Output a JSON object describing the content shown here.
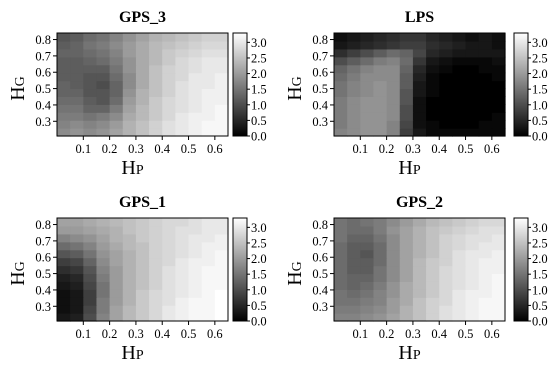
{
  "chart_data": [
    {
      "type": "heatmap",
      "title": "GPS_3",
      "xlabel": "H",
      "xlabel_sub": "P",
      "ylabel": "H",
      "ylabel_sub": "G",
      "xlim": [
        0.0,
        0.65
      ],
      "ylim": [
        0.21,
        0.84
      ],
      "x_ticks": [
        "0.1",
        "0.2",
        "0.3",
        "0.4",
        "0.5",
        "0.6"
      ],
      "y_ticks": [
        "0.3",
        "0.4",
        "0.5",
        "0.6",
        "0.7",
        "0.8"
      ],
      "color_range": [
        0.0,
        3.3
      ],
      "colorbar_ticks": [
        "0.0",
        "0.5",
        "1.0",
        "1.5",
        "2.0",
        "2.5",
        "3.0"
      ],
      "colormap": [
        "#000000",
        "#ffffff"
      ],
      "x": [
        0.025,
        0.075,
        0.125,
        0.175,
        0.225,
        0.275,
        0.325,
        0.375,
        0.425,
        0.475,
        0.525,
        0.575,
        0.625
      ],
      "y": [
        0.23,
        0.28,
        0.33,
        0.38,
        0.43,
        0.48,
        0.53,
        0.58,
        0.63,
        0.68,
        0.73,
        0.78,
        0.82
      ],
      "z": [
        [
          1.8,
          1.9,
          1.8,
          1.9,
          2.1,
          2.3,
          2.5,
          2.7,
          2.9,
          3.0,
          3.1,
          3.2,
          3.2
        ],
        [
          1.7,
          1.8,
          1.7,
          1.8,
          2.0,
          2.3,
          2.5,
          2.7,
          2.9,
          3.0,
          3.1,
          3.2,
          3.2
        ],
        [
          1.6,
          1.6,
          1.5,
          1.6,
          1.8,
          2.2,
          2.4,
          2.6,
          2.8,
          3.0,
          3.1,
          3.1,
          3.2
        ],
        [
          1.5,
          1.5,
          1.3,
          1.3,
          1.6,
          2.1,
          2.4,
          2.6,
          2.8,
          2.9,
          3.0,
          3.1,
          3.2
        ],
        [
          1.4,
          1.4,
          1.2,
          1.1,
          1.4,
          2.0,
          2.3,
          2.6,
          2.8,
          2.9,
          3.0,
          3.1,
          3.1
        ],
        [
          1.3,
          1.3,
          1.1,
          1.1,
          1.3,
          1.9,
          2.3,
          2.5,
          2.7,
          2.9,
          3.0,
          3.1,
          3.1
        ],
        [
          1.3,
          1.2,
          1.1,
          1.0,
          1.3,
          1.8,
          2.2,
          2.5,
          2.7,
          2.9,
          3.0,
          3.0,
          3.1
        ],
        [
          1.2,
          1.2,
          1.1,
          1.1,
          1.4,
          1.8,
          2.2,
          2.5,
          2.7,
          2.8,
          3.0,
          3.0,
          3.1
        ],
        [
          1.2,
          1.2,
          1.2,
          1.2,
          1.5,
          1.9,
          2.2,
          2.5,
          2.7,
          2.8,
          2.9,
          3.0,
          3.0
        ],
        [
          1.2,
          1.2,
          1.3,
          1.4,
          1.6,
          1.9,
          2.2,
          2.4,
          2.6,
          2.8,
          2.9,
          3.0,
          3.0
        ],
        [
          1.3,
          1.3,
          1.4,
          1.5,
          1.7,
          2.0,
          2.2,
          2.4,
          2.6,
          2.7,
          2.8,
          2.9,
          2.9
        ],
        [
          1.2,
          1.3,
          1.5,
          1.6,
          1.8,
          2.0,
          2.2,
          2.4,
          2.5,
          2.6,
          2.7,
          2.8,
          2.8
        ],
        [
          1.1,
          1.2,
          1.4,
          1.5,
          1.7,
          1.9,
          2.1,
          2.3,
          2.4,
          2.5,
          2.6,
          2.7,
          2.7
        ]
      ]
    },
    {
      "type": "heatmap",
      "title": "LPS",
      "xlabel": "H",
      "xlabel_sub": "P",
      "ylabel": "H",
      "ylabel_sub": "G",
      "xlim": [
        0.0,
        0.65
      ],
      "ylim": [
        0.21,
        0.84
      ],
      "x_ticks": [
        "0.1",
        "0.2",
        "0.3",
        "0.4",
        "0.5",
        "0.6"
      ],
      "y_ticks": [
        "0.3",
        "0.4",
        "0.5",
        "0.6",
        "0.7",
        "0.8"
      ],
      "color_range": [
        0.0,
        3.3
      ],
      "colorbar_ticks": [
        "0.0",
        "0.5",
        "1.0",
        "1.5",
        "2.0",
        "2.5",
        "3.0"
      ],
      "colormap": [
        "#000000",
        "#ffffff"
      ],
      "x": [
        0.025,
        0.075,
        0.125,
        0.175,
        0.225,
        0.275,
        0.325,
        0.375,
        0.425,
        0.475,
        0.525,
        0.575,
        0.625
      ],
      "y": [
        0.23,
        0.28,
        0.33,
        0.38,
        0.43,
        0.48,
        0.53,
        0.58,
        0.63,
        0.68,
        0.73,
        0.78,
        0.82
      ],
      "z": [
        [
          1.7,
          1.8,
          1.9,
          1.9,
          1.7,
          0.8,
          0.3,
          0.1,
          0.1,
          0.1,
          0.1,
          0.1,
          0.1
        ],
        [
          1.6,
          1.8,
          1.9,
          1.9,
          1.7,
          0.9,
          0.2,
          0.1,
          0.0,
          0.0,
          0.0,
          0.1,
          0.1
        ],
        [
          1.6,
          1.8,
          1.9,
          1.9,
          1.8,
          1.0,
          0.2,
          0.0,
          0.0,
          0.0,
          0.0,
          0.0,
          0.1
        ],
        [
          1.6,
          1.8,
          1.9,
          1.9,
          1.8,
          1.0,
          0.2,
          0.0,
          0.0,
          0.0,
          0.0,
          0.0,
          0.0
        ],
        [
          1.6,
          1.8,
          1.9,
          1.9,
          1.8,
          1.1,
          0.2,
          0.0,
          0.0,
          0.0,
          0.0,
          0.0,
          0.0
        ],
        [
          1.5,
          1.7,
          1.8,
          1.9,
          1.8,
          1.1,
          0.3,
          0.1,
          0.0,
          0.0,
          0.0,
          0.0,
          0.0
        ],
        [
          1.5,
          1.7,
          1.8,
          1.9,
          1.8,
          1.2,
          0.3,
          0.1,
          0.0,
          0.0,
          0.0,
          0.0,
          0.0
        ],
        [
          1.4,
          1.6,
          1.8,
          1.8,
          1.8,
          1.2,
          0.4,
          0.1,
          0.0,
          0.0,
          0.0,
          0.0,
          0.1
        ],
        [
          1.3,
          1.5,
          1.7,
          1.8,
          1.8,
          1.3,
          0.5,
          0.2,
          0.1,
          0.0,
          0.0,
          0.1,
          0.1
        ],
        [
          1.0,
          1.2,
          1.4,
          1.6,
          1.7,
          1.4,
          0.7,
          0.3,
          0.2,
          0.1,
          0.1,
          0.1,
          0.2
        ],
        [
          0.6,
          0.8,
          1.0,
          1.2,
          1.4,
          1.3,
          0.9,
          0.5,
          0.4,
          0.3,
          0.3,
          0.3,
          0.3
        ],
        [
          0.3,
          0.4,
          0.5,
          0.6,
          0.7,
          0.8,
          0.8,
          0.6,
          0.5,
          0.4,
          0.3,
          0.3,
          0.2
        ],
        [
          0.2,
          0.3,
          0.4,
          0.5,
          0.6,
          0.7,
          0.7,
          0.5,
          0.4,
          0.3,
          0.2,
          0.3,
          0.2
        ]
      ]
    },
    {
      "type": "heatmap",
      "title": "GPS_1",
      "xlabel": "H",
      "xlabel_sub": "P",
      "ylabel": "H",
      "ylabel_sub": "G",
      "xlim": [
        0.0,
        0.65
      ],
      "ylim": [
        0.21,
        0.84
      ],
      "x_ticks": [
        "0.1",
        "0.2",
        "0.3",
        "0.4",
        "0.5",
        "0.6"
      ],
      "y_ticks": [
        "0.3",
        "0.4",
        "0.5",
        "0.6",
        "0.7",
        "0.8"
      ],
      "color_range": [
        0.0,
        3.3
      ],
      "colorbar_ticks": [
        "0.0",
        "0.5",
        "1.0",
        "1.5",
        "2.0",
        "2.5",
        "3.0"
      ],
      "colormap": [
        "#000000",
        "#ffffff"
      ],
      "x": [
        0.025,
        0.075,
        0.125,
        0.175,
        0.225,
        0.275,
        0.325,
        0.375,
        0.425,
        0.475,
        0.525,
        0.575,
        0.625
      ],
      "y": [
        0.23,
        0.28,
        0.33,
        0.38,
        0.43,
        0.48,
        0.53,
        0.58,
        0.63,
        0.68,
        0.73,
        0.78,
        0.82
      ],
      "z": [
        [
          0.3,
          0.4,
          1.0,
          1.7,
          2.1,
          2.4,
          2.6,
          2.8,
          3.0,
          3.1,
          3.2,
          3.2,
          3.3
        ],
        [
          0.2,
          0.3,
          0.9,
          1.6,
          2.1,
          2.4,
          2.6,
          2.8,
          3.0,
          3.1,
          3.2,
          3.2,
          3.3
        ],
        [
          0.2,
          0.3,
          0.8,
          1.6,
          2.0,
          2.3,
          2.6,
          2.8,
          2.9,
          3.1,
          3.2,
          3.2,
          3.3
        ],
        [
          0.2,
          0.3,
          0.8,
          1.5,
          2.0,
          2.3,
          2.6,
          2.8,
          2.9,
          3.0,
          3.1,
          3.2,
          3.3
        ],
        [
          0.3,
          0.4,
          0.9,
          1.5,
          2.0,
          2.3,
          2.5,
          2.7,
          2.9,
          3.0,
          3.1,
          3.2,
          3.2
        ],
        [
          0.4,
          0.5,
          1.0,
          1.6,
          2.0,
          2.3,
          2.5,
          2.7,
          2.9,
          3.0,
          3.1,
          3.2,
          3.2
        ],
        [
          0.6,
          0.7,
          1.1,
          1.7,
          2.0,
          2.3,
          2.5,
          2.7,
          2.9,
          3.0,
          3.1,
          3.2,
          3.2
        ],
        [
          0.8,
          0.9,
          1.3,
          1.8,
          2.1,
          2.3,
          2.5,
          2.7,
          2.8,
          3.0,
          3.1,
          3.1,
          3.2
        ],
        [
          1.1,
          1.2,
          1.5,
          1.9,
          2.1,
          2.3,
          2.5,
          2.7,
          2.8,
          2.9,
          3.0,
          3.1,
          3.2
        ],
        [
          1.4,
          1.5,
          1.7,
          2.0,
          2.2,
          2.4,
          2.5,
          2.7,
          2.8,
          2.9,
          3.0,
          3.1,
          3.1
        ],
        [
          1.7,
          1.8,
          1.9,
          2.1,
          2.3,
          2.4,
          2.6,
          2.7,
          2.8,
          2.9,
          3.0,
          3.0,
          3.1
        ],
        [
          2.0,
          2.0,
          2.1,
          2.2,
          2.3,
          2.5,
          2.6,
          2.7,
          2.8,
          2.9,
          2.9,
          3.0,
          3.0
        ],
        [
          2.1,
          2.1,
          2.2,
          2.3,
          2.4,
          2.5,
          2.6,
          2.7,
          2.8,
          2.8,
          2.9,
          3.0,
          3.0
        ]
      ]
    },
    {
      "type": "heatmap",
      "title": "GPS_2",
      "xlabel": "H",
      "xlabel_sub": "P",
      "ylabel": "H",
      "ylabel_sub": "G",
      "xlim": [
        0.0,
        0.65
      ],
      "ylim": [
        0.21,
        0.84
      ],
      "x_ticks": [
        "0.1",
        "0.2",
        "0.3",
        "0.4",
        "0.5",
        "0.6"
      ],
      "y_ticks": [
        "0.3",
        "0.4",
        "0.5",
        "0.6",
        "0.7",
        "0.8"
      ],
      "color_range": [
        0.0,
        3.3
      ],
      "colorbar_ticks": [
        "0.0",
        "0.5",
        "1.0",
        "1.5",
        "2.0",
        "2.5",
        "3.0"
      ],
      "colormap": [
        "#000000",
        "#ffffff"
      ],
      "x": [
        0.025,
        0.075,
        0.125,
        0.175,
        0.225,
        0.275,
        0.325,
        0.375,
        0.425,
        0.475,
        0.525,
        0.575,
        0.625
      ],
      "y": [
        0.23,
        0.28,
        0.33,
        0.38,
        0.43,
        0.48,
        0.53,
        0.58,
        0.63,
        0.68,
        0.73,
        0.78,
        0.82
      ],
      "z": [
        [
          1.7,
          1.7,
          1.8,
          1.9,
          2.1,
          2.3,
          2.5,
          2.7,
          2.9,
          3.0,
          3.1,
          3.2,
          3.2
        ],
        [
          1.6,
          1.6,
          1.7,
          1.8,
          2.0,
          2.3,
          2.5,
          2.7,
          2.9,
          3.0,
          3.1,
          3.2,
          3.2
        ],
        [
          1.5,
          1.5,
          1.6,
          1.7,
          2.0,
          2.2,
          2.5,
          2.7,
          2.8,
          3.0,
          3.1,
          3.2,
          3.2
        ],
        [
          1.5,
          1.4,
          1.5,
          1.7,
          1.9,
          2.2,
          2.4,
          2.6,
          2.8,
          3.0,
          3.1,
          3.1,
          3.2
        ],
        [
          1.4,
          1.3,
          1.4,
          1.6,
          1.9,
          2.2,
          2.4,
          2.6,
          2.8,
          2.9,
          3.0,
          3.1,
          3.2
        ],
        [
          1.4,
          1.3,
          1.3,
          1.5,
          1.8,
          2.1,
          2.4,
          2.6,
          2.8,
          2.9,
          3.0,
          3.1,
          3.2
        ],
        [
          1.4,
          1.2,
          1.2,
          1.5,
          1.8,
          2.1,
          2.4,
          2.6,
          2.8,
          2.9,
          3.0,
          3.1,
          3.1
        ],
        [
          1.4,
          1.2,
          1.2,
          1.4,
          1.8,
          2.1,
          2.4,
          2.6,
          2.7,
          2.9,
          3.0,
          3.1,
          3.1
        ],
        [
          1.4,
          1.2,
          1.1,
          1.4,
          1.8,
          2.1,
          2.3,
          2.5,
          2.7,
          2.9,
          3.0,
          3.0,
          3.1
        ],
        [
          1.4,
          1.2,
          1.2,
          1.4,
          1.8,
          2.1,
          2.3,
          2.5,
          2.7,
          2.8,
          2.9,
          3.0,
          3.0
        ],
        [
          1.5,
          1.3,
          1.3,
          1.5,
          1.8,
          2.1,
          2.3,
          2.5,
          2.7,
          2.8,
          2.9,
          2.9,
          3.0
        ],
        [
          1.5,
          1.4,
          1.4,
          1.6,
          1.9,
          2.1,
          2.3,
          2.5,
          2.6,
          2.7,
          2.8,
          2.9,
          2.9
        ],
        [
          1.5,
          1.4,
          1.5,
          1.6,
          1.8,
          2.0,
          2.2,
          2.4,
          2.5,
          2.6,
          2.7,
          2.8,
          2.8
        ]
      ]
    }
  ]
}
